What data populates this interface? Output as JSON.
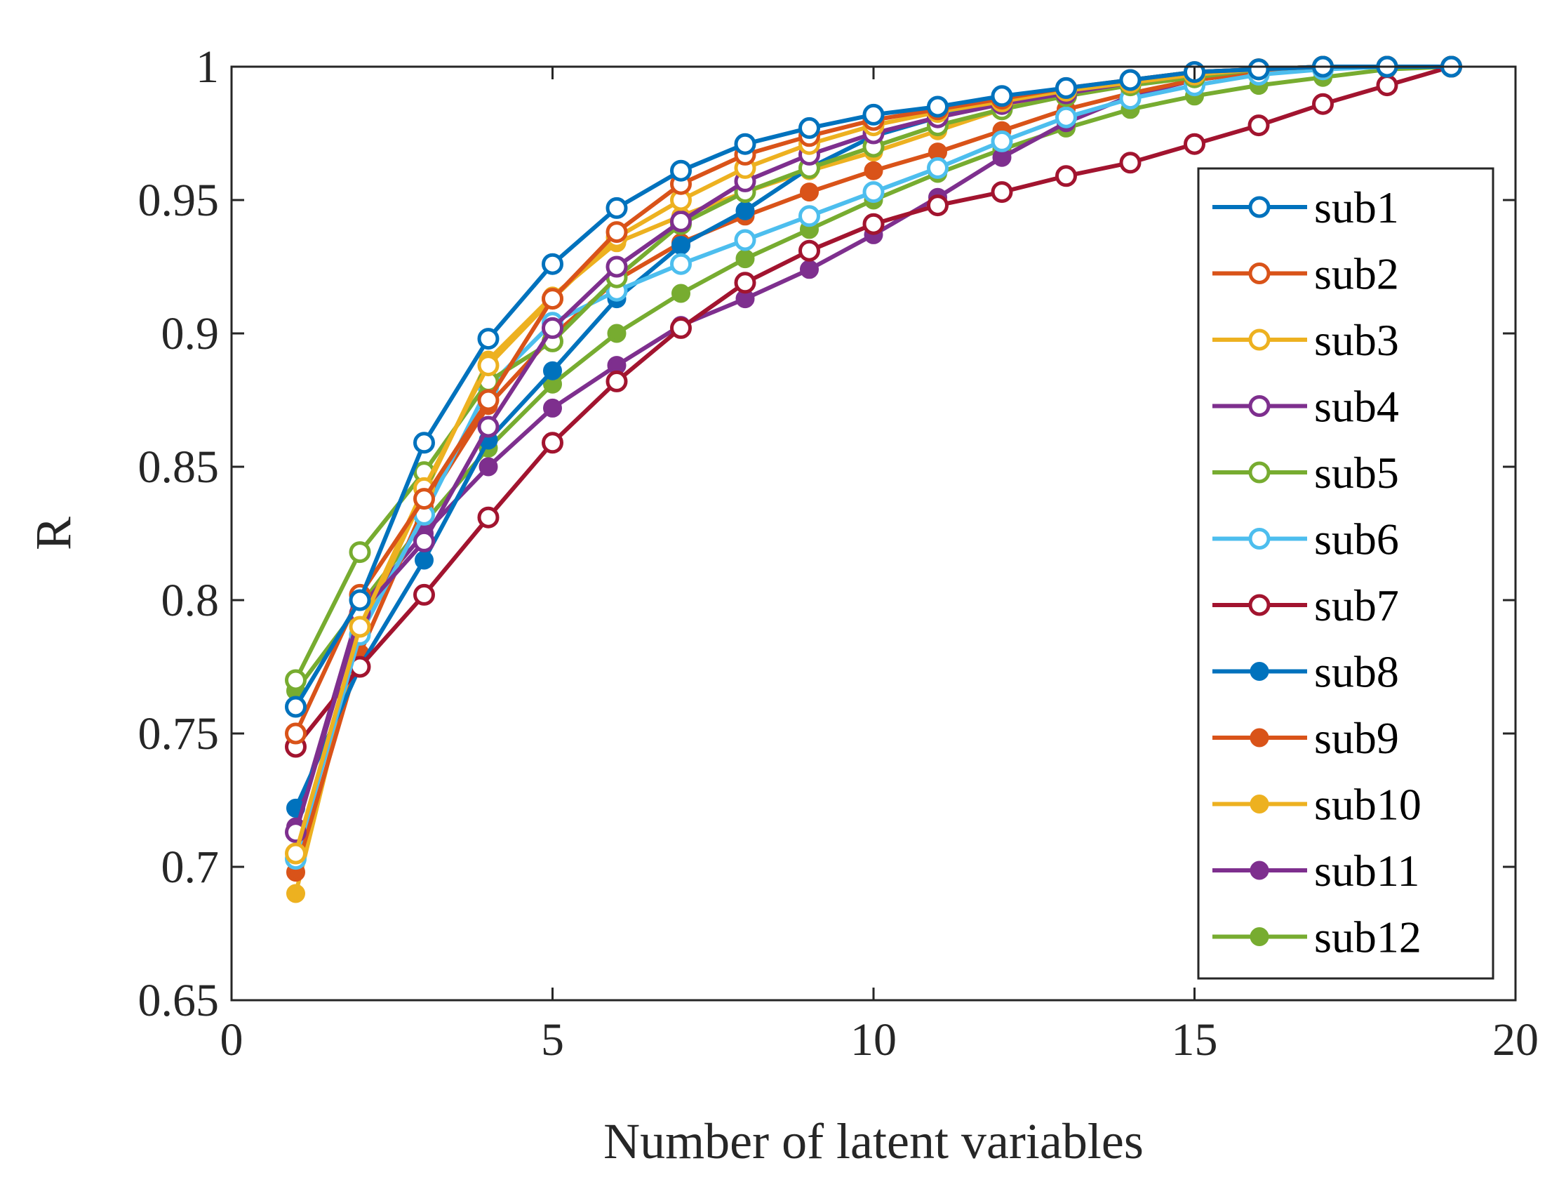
{
  "chart_data": {
    "type": "line",
    "title": "",
    "xlabel": "Number of latent variables",
    "ylabel": "R",
    "xlim": [
      0,
      20
    ],
    "ylim": [
      0.65,
      1
    ],
    "xticks": [
      0,
      5,
      10,
      15,
      20
    ],
    "xtick_labels": [
      "0",
      "5",
      "10",
      "15",
      "20"
    ],
    "yticks": [
      0.65,
      0.7,
      0.75,
      0.8,
      0.85,
      0.9,
      0.95,
      1
    ],
    "ytick_labels": [
      "0.65",
      "0.7",
      "0.75",
      "0.8",
      "0.85",
      "0.9",
      "0.95",
      "1"
    ],
    "grid": false,
    "legend_position": "right",
    "x": [
      1,
      2,
      3,
      4,
      5,
      6,
      7,
      8,
      9,
      10,
      11,
      12,
      13,
      14,
      15,
      16,
      17,
      18,
      19
    ],
    "series": [
      {
        "name": "sub1",
        "color": "#0072BD",
        "marker": "open-circle",
        "values": [
          0.76,
          0.8,
          0.859,
          0.898,
          0.926,
          0.947,
          0.961,
          0.971,
          0.977,
          0.982,
          0.985,
          0.989,
          0.992,
          0.995,
          0.998,
          0.999,
          1.0,
          1.0,
          1.0
        ]
      },
      {
        "name": "sub2",
        "color": "#D95319",
        "marker": "open-circle",
        "values": [
          0.75,
          0.802,
          0.838,
          0.875,
          0.913,
          0.938,
          0.956,
          0.967,
          0.974,
          0.98,
          0.984,
          0.988,
          0.992,
          0.995,
          0.998,
          0.999,
          1.0,
          1.0,
          1.0
        ]
      },
      {
        "name": "sub3",
        "color": "#EDB120",
        "marker": "open-circle",
        "values": [
          0.705,
          0.79,
          0.842,
          0.888,
          0.913,
          0.936,
          0.95,
          0.962,
          0.971,
          0.978,
          0.983,
          0.987,
          0.991,
          0.994,
          0.997,
          0.999,
          1.0,
          1.0,
          1.0
        ]
      },
      {
        "name": "sub4",
        "color": "#7E2F8E",
        "marker": "open-circle",
        "values": [
          0.713,
          0.795,
          0.822,
          0.865,
          0.902,
          0.925,
          0.942,
          0.957,
          0.967,
          0.975,
          0.981,
          0.986,
          0.99,
          0.994,
          0.997,
          0.999,
          1.0,
          1.0,
          1.0
        ]
      },
      {
        "name": "sub5",
        "color": "#77AC30",
        "marker": "open-circle",
        "values": [
          0.77,
          0.818,
          0.848,
          0.882,
          0.897,
          0.921,
          0.941,
          0.953,
          0.962,
          0.97,
          0.978,
          0.984,
          0.989,
          0.993,
          0.996,
          0.999,
          1.0,
          1.0,
          1.0
        ]
      },
      {
        "name": "sub6",
        "color": "#4DBEEE",
        "marker": "open-circle",
        "values": [
          0.703,
          0.787,
          0.832,
          0.88,
          0.904,
          0.916,
          0.926,
          0.935,
          0.944,
          0.953,
          0.962,
          0.972,
          0.981,
          0.988,
          0.993,
          0.997,
          0.999,
          1.0,
          1.0
        ]
      },
      {
        "name": "sub7",
        "color": "#A2142F",
        "marker": "open-circle",
        "values": [
          0.745,
          0.775,
          0.802,
          0.831,
          0.859,
          0.882,
          0.902,
          0.919,
          0.931,
          0.941,
          0.948,
          0.953,
          0.959,
          0.964,
          0.971,
          0.978,
          0.986,
          0.993,
          1.0
        ]
      },
      {
        "name": "sub8",
        "color": "#0072BD",
        "marker": "filled-circle",
        "values": [
          0.722,
          0.775,
          0.815,
          0.86,
          0.886,
          0.913,
          0.933,
          0.946,
          0.962,
          0.974,
          0.981,
          0.987,
          0.991,
          0.995,
          0.998,
          0.999,
          1.0,
          1.0,
          1.0
        ]
      },
      {
        "name": "sub9",
        "color": "#D95319",
        "marker": "filled-circle",
        "values": [
          0.698,
          0.78,
          0.835,
          0.873,
          0.899,
          0.92,
          0.934,
          0.944,
          0.953,
          0.961,
          0.968,
          0.976,
          0.984,
          0.99,
          0.995,
          0.998,
          1.0,
          1.0,
          1.0
        ]
      },
      {
        "name": "sub10",
        "color": "#EDB120",
        "marker": "filled-circle",
        "values": [
          0.69,
          0.788,
          0.84,
          0.89,
          0.914,
          0.934,
          0.944,
          0.953,
          0.961,
          0.968,
          0.976,
          0.984,
          0.99,
          0.995,
          0.998,
          0.999,
          1.0,
          1.0,
          1.0
        ]
      },
      {
        "name": "sub11",
        "color": "#7E2F8E",
        "marker": "filled-circle",
        "values": [
          0.715,
          0.797,
          0.825,
          0.85,
          0.872,
          0.888,
          0.903,
          0.913,
          0.924,
          0.937,
          0.951,
          0.966,
          0.979,
          0.989,
          0.995,
          0.998,
          1.0,
          1.0,
          1.0
        ]
      },
      {
        "name": "sub12",
        "color": "#77AC30",
        "marker": "filled-circle",
        "values": [
          0.766,
          0.798,
          0.829,
          0.857,
          0.881,
          0.9,
          0.915,
          0.928,
          0.939,
          0.95,
          0.96,
          0.969,
          0.977,
          0.984,
          0.989,
          0.993,
          0.996,
          0.999,
          1.0
        ]
      }
    ]
  }
}
